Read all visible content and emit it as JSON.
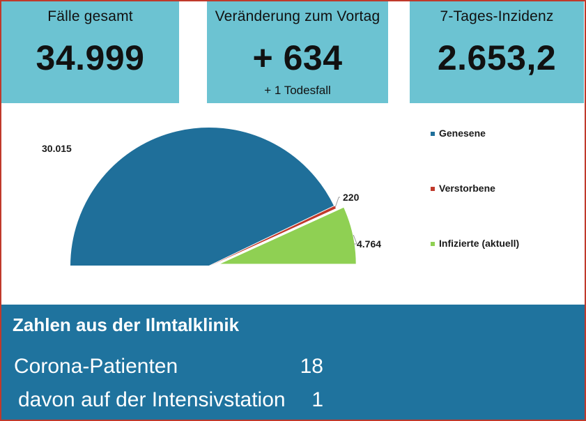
{
  "cards": [
    {
      "label": "Fälle gesamt",
      "value": "34.999"
    },
    {
      "label": "Veränderung zum Vortag",
      "value": "+ 634",
      "sub": "+ 1 Todesfall"
    },
    {
      "label": "7-Tages-Inzidenz",
      "value": "2.653,2"
    }
  ],
  "chart_data": {
    "type": "pie",
    "title": "",
    "slices": [
      {
        "name": "Genesene",
        "value": 30015,
        "label": "30.015",
        "color": "#1f6f9a"
      },
      {
        "name": "Verstorbene",
        "value": 220,
        "label": "220",
        "color": "#c0392b"
      },
      {
        "name": "Infizierte (aktuell)",
        "value": 4764,
        "label": "4.764",
        "color": "#8fd053"
      }
    ],
    "legend_position": "right"
  },
  "clinic": {
    "title": "Zahlen aus der Ilmtalklinik",
    "rows": [
      {
        "label": "Corona-Patienten",
        "value": "18"
      },
      {
        "label": "davon auf der Intensivstation",
        "value": "1"
      }
    ]
  },
  "colors": {
    "card_bg": "#6cc3d2",
    "panel_bg": "#1f739e",
    "frame": "#c0392b"
  }
}
